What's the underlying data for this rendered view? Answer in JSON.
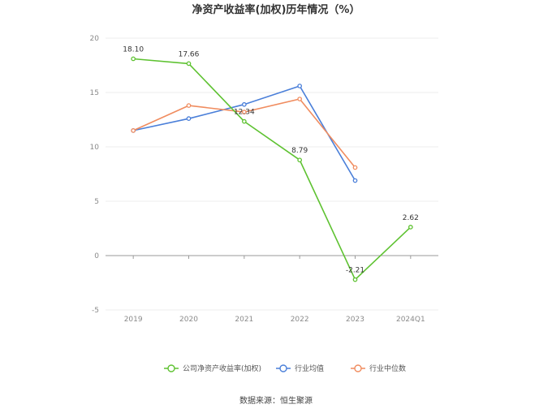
{
  "chart_data": {
    "type": "line",
    "title": "净资产收益率(加权)历年情况（%）",
    "categories": [
      "2019",
      "2020",
      "2021",
      "2022",
      "2023",
      "2024Q1"
    ],
    "ylim": [
      -5,
      20
    ],
    "yticks": [
      -5,
      0,
      5,
      10,
      15,
      20
    ],
    "grid": true,
    "legend_position": "bottom",
    "series": [
      {
        "name": "公司净资产收益率(加权)",
        "color": "#5ec231",
        "values": [
          18.1,
          17.66,
          12.34,
          8.79,
          -2.21,
          2.62
        ],
        "labels": [
          "18.10",
          "17.66",
          "12.34",
          "8.79",
          "-2.21",
          "2.62"
        ]
      },
      {
        "name": "行业均值",
        "color": "#4a7fd9",
        "values": [
          11.5,
          12.6,
          13.9,
          15.6,
          6.9,
          null
        ]
      },
      {
        "name": "行业中位数",
        "color": "#f08c5f",
        "values": [
          11.5,
          13.8,
          13.2,
          14.4,
          8.1,
          null
        ]
      }
    ]
  },
  "footer": {
    "source": "数据来源：恒生聚源"
  }
}
